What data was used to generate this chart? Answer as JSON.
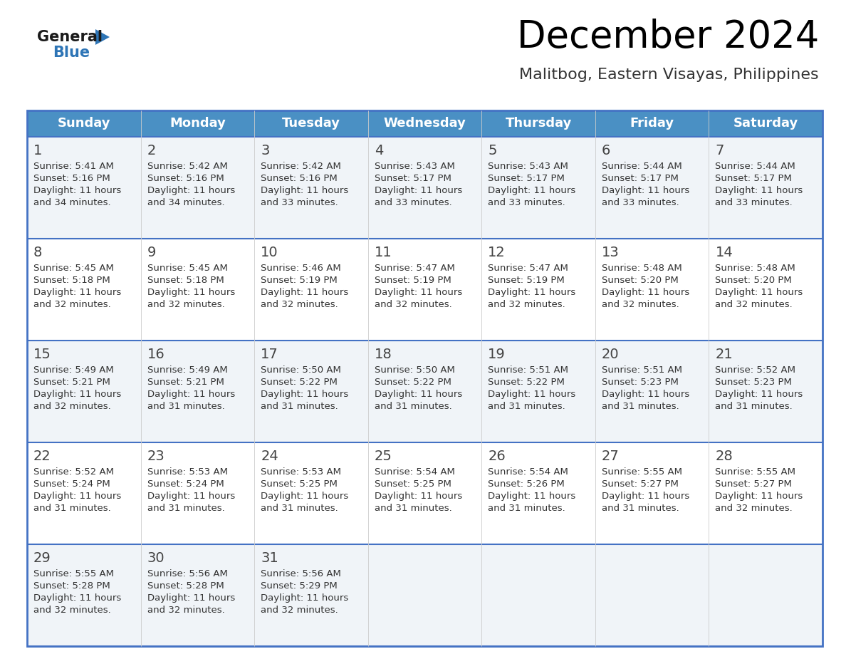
{
  "title": "December 2024",
  "subtitle": "Malitbog, Eastern Visayas, Philippines",
  "header_bg_color": "#4A90C4",
  "header_text_color": "#FFFFFF",
  "day_names": [
    "Sunday",
    "Monday",
    "Tuesday",
    "Wednesday",
    "Thursday",
    "Friday",
    "Saturday"
  ],
  "row_bg_colors": [
    "#F0F4F8",
    "#FFFFFF",
    "#F0F4F8",
    "#FFFFFF",
    "#F0F4F8"
  ],
  "border_color": "#4472C4",
  "row_divider_color": "#4472C4",
  "title_color": "#000000",
  "subtitle_color": "#333333",
  "day_number_color": "#444444",
  "cell_text_color": "#333333",
  "logo_general_color": "#1a1a1a",
  "logo_blue_color": "#2E75B6",
  "weeks": [
    {
      "days": [
        {
          "date": 1,
          "sunrise": "5:41 AM",
          "sunset": "5:16 PM",
          "daylight_hours": 11,
          "daylight_minutes": 34
        },
        {
          "date": 2,
          "sunrise": "5:42 AM",
          "sunset": "5:16 PM",
          "daylight_hours": 11,
          "daylight_minutes": 34
        },
        {
          "date": 3,
          "sunrise": "5:42 AM",
          "sunset": "5:16 PM",
          "daylight_hours": 11,
          "daylight_minutes": 33
        },
        {
          "date": 4,
          "sunrise": "5:43 AM",
          "sunset": "5:17 PM",
          "daylight_hours": 11,
          "daylight_minutes": 33
        },
        {
          "date": 5,
          "sunrise": "5:43 AM",
          "sunset": "5:17 PM",
          "daylight_hours": 11,
          "daylight_minutes": 33
        },
        {
          "date": 6,
          "sunrise": "5:44 AM",
          "sunset": "5:17 PM",
          "daylight_hours": 11,
          "daylight_minutes": 33
        },
        {
          "date": 7,
          "sunrise": "5:44 AM",
          "sunset": "5:17 PM",
          "daylight_hours": 11,
          "daylight_minutes": 33
        }
      ]
    },
    {
      "days": [
        {
          "date": 8,
          "sunrise": "5:45 AM",
          "sunset": "5:18 PM",
          "daylight_hours": 11,
          "daylight_minutes": 32
        },
        {
          "date": 9,
          "sunrise": "5:45 AM",
          "sunset": "5:18 PM",
          "daylight_hours": 11,
          "daylight_minutes": 32
        },
        {
          "date": 10,
          "sunrise": "5:46 AM",
          "sunset": "5:19 PM",
          "daylight_hours": 11,
          "daylight_minutes": 32
        },
        {
          "date": 11,
          "sunrise": "5:47 AM",
          "sunset": "5:19 PM",
          "daylight_hours": 11,
          "daylight_minutes": 32
        },
        {
          "date": 12,
          "sunrise": "5:47 AM",
          "sunset": "5:19 PM",
          "daylight_hours": 11,
          "daylight_minutes": 32
        },
        {
          "date": 13,
          "sunrise": "5:48 AM",
          "sunset": "5:20 PM",
          "daylight_hours": 11,
          "daylight_minutes": 32
        },
        {
          "date": 14,
          "sunrise": "5:48 AM",
          "sunset": "5:20 PM",
          "daylight_hours": 11,
          "daylight_minutes": 32
        }
      ]
    },
    {
      "days": [
        {
          "date": 15,
          "sunrise": "5:49 AM",
          "sunset": "5:21 PM",
          "daylight_hours": 11,
          "daylight_minutes": 32
        },
        {
          "date": 16,
          "sunrise": "5:49 AM",
          "sunset": "5:21 PM",
          "daylight_hours": 11,
          "daylight_minutes": 31
        },
        {
          "date": 17,
          "sunrise": "5:50 AM",
          "sunset": "5:22 PM",
          "daylight_hours": 11,
          "daylight_minutes": 31
        },
        {
          "date": 18,
          "sunrise": "5:50 AM",
          "sunset": "5:22 PM",
          "daylight_hours": 11,
          "daylight_minutes": 31
        },
        {
          "date": 19,
          "sunrise": "5:51 AM",
          "sunset": "5:22 PM",
          "daylight_hours": 11,
          "daylight_minutes": 31
        },
        {
          "date": 20,
          "sunrise": "5:51 AM",
          "sunset": "5:23 PM",
          "daylight_hours": 11,
          "daylight_minutes": 31
        },
        {
          "date": 21,
          "sunrise": "5:52 AM",
          "sunset": "5:23 PM",
          "daylight_hours": 11,
          "daylight_minutes": 31
        }
      ]
    },
    {
      "days": [
        {
          "date": 22,
          "sunrise": "5:52 AM",
          "sunset": "5:24 PM",
          "daylight_hours": 11,
          "daylight_minutes": 31
        },
        {
          "date": 23,
          "sunrise": "5:53 AM",
          "sunset": "5:24 PM",
          "daylight_hours": 11,
          "daylight_minutes": 31
        },
        {
          "date": 24,
          "sunrise": "5:53 AM",
          "sunset": "5:25 PM",
          "daylight_hours": 11,
          "daylight_minutes": 31
        },
        {
          "date": 25,
          "sunrise": "5:54 AM",
          "sunset": "5:25 PM",
          "daylight_hours": 11,
          "daylight_minutes": 31
        },
        {
          "date": 26,
          "sunrise": "5:54 AM",
          "sunset": "5:26 PM",
          "daylight_hours": 11,
          "daylight_minutes": 31
        },
        {
          "date": 27,
          "sunrise": "5:55 AM",
          "sunset": "5:27 PM",
          "daylight_hours": 11,
          "daylight_minutes": 31
        },
        {
          "date": 28,
          "sunrise": "5:55 AM",
          "sunset": "5:27 PM",
          "daylight_hours": 11,
          "daylight_minutes": 32
        }
      ]
    },
    {
      "days": [
        {
          "date": 29,
          "sunrise": "5:55 AM",
          "sunset": "5:28 PM",
          "daylight_hours": 11,
          "daylight_minutes": 32
        },
        {
          "date": 30,
          "sunrise": "5:56 AM",
          "sunset": "5:28 PM",
          "daylight_hours": 11,
          "daylight_minutes": 32
        },
        {
          "date": 31,
          "sunrise": "5:56 AM",
          "sunset": "5:29 PM",
          "daylight_hours": 11,
          "daylight_minutes": 32
        },
        null,
        null,
        null,
        null
      ]
    }
  ]
}
